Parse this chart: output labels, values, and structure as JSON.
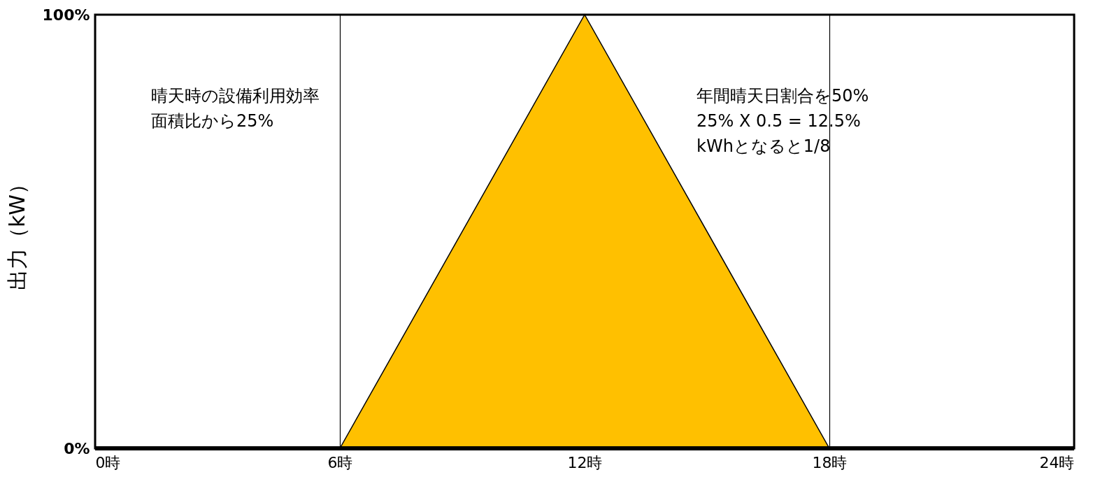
{
  "chart_data": {
    "type": "area",
    "ylabel": "出力（kW）",
    "x": [
      0,
      6,
      12,
      18,
      24
    ],
    "series": [
      {
        "color": "#ffc000",
        "values": [
          0,
          0,
          100,
          0,
          0
        ]
      }
    ],
    "xlim": [
      0,
      24
    ],
    "xticks": [
      {
        "value": 0,
        "label": "0時"
      },
      {
        "value": 6,
        "label": "6時"
      },
      {
        "value": 12,
        "label": "12時"
      },
      {
        "value": 18,
        "label": "18時"
      },
      {
        "value": 24,
        "label": "24時"
      }
    ],
    "ylim": [
      0,
      100
    ],
    "yticks": [
      {
        "value": 0,
        "label": "0%"
      },
      {
        "value": 100,
        "label": "100%"
      }
    ],
    "grid": "x",
    "annotations": [
      "晴天時の設備利用効率",
      "面積比から25%",
      "年間晴天日割合を50%",
      "25% X 0.5 = 12.5%",
      "kWhとなると1/8"
    ]
  }
}
